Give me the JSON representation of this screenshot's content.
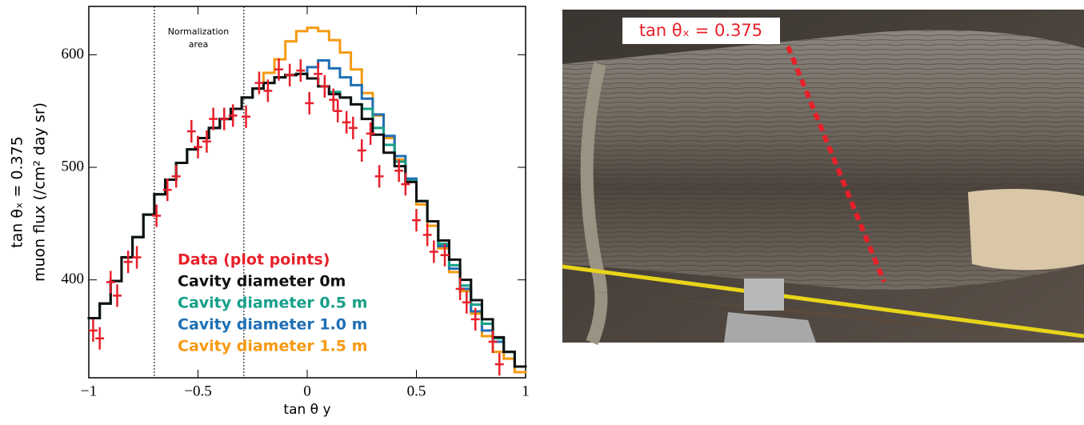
{
  "chart_data": {
    "type": "histogram",
    "ylabel_lines": [
      "tan θₓ = 0.375",
      "muon flux (/cm² day sr)"
    ],
    "xlabel": "tan θ y",
    "annotation_lines": [
      "Normalization",
      "area"
    ],
    "normalization_bounds": [
      -0.7,
      -0.29
    ],
    "xlim": [
      -1,
      1
    ],
    "ylim": [
      313,
      643
    ],
    "xticks": [
      {
        "value": -1,
        "label": "−1"
      },
      {
        "value": -0.5,
        "label": "−0.5"
      },
      0,
      0.5,
      1
    ],
    "yticks": [
      400,
      500,
      600
    ],
    "bins": [
      -1,
      -0.95,
      -0.9,
      -0.85,
      -0.8,
      -0.75,
      -0.7,
      -0.65,
      -0.6,
      -0.55,
      -0.5,
      -0.45,
      -0.4,
      -0.35,
      -0.3,
      -0.25,
      -0.2,
      -0.15,
      -0.1,
      -0.05,
      0,
      0.05,
      0.1,
      0.15,
      0.2,
      0.25,
      0.3,
      0.35,
      0.4,
      0.45,
      0.5,
      0.55,
      0.6,
      0.65,
      0.7,
      0.75,
      0.8,
      0.85,
      0.9,
      0.95,
      1
    ],
    "series": [
      {
        "name": "Cavity diameter 1.5 m",
        "color": "#f59a12",
        "values": [
          366,
          379,
          399,
          420,
          438,
          458,
          476,
          489,
          504,
          516,
          526,
          535,
          543,
          552,
          562,
          570,
          584,
          596,
          612,
          621,
          624,
          621,
          613,
          602,
          587,
          566,
          546,
          526,
          507,
          487,
          467,
          448,
          428,
          407,
          390,
          370,
          350,
          336,
          330,
          318
        ]
      },
      {
        "name": "Cavity diameter 1.0 m",
        "color": "#1f6fb4",
        "values": [
          366,
          379,
          399,
          420,
          438,
          458,
          476,
          489,
          504,
          516,
          526,
          535,
          543,
          552,
          562,
          570,
          575,
          580,
          582,
          583,
          589,
          595,
          588,
          580,
          573,
          561,
          547,
          528,
          510,
          490,
          470,
          452,
          430,
          410,
          392,
          372,
          355,
          345,
          336,
          323
        ]
      },
      {
        "name": "Cavity diameter 0.5 m",
        "color": "#16a08a",
        "values": [
          366,
          379,
          399,
          420,
          438,
          458,
          476,
          489,
          504,
          516,
          526,
          535,
          543,
          552,
          562,
          570,
          575,
          580,
          582,
          583,
          579,
          572,
          567,
          562,
          556,
          552,
          535,
          520,
          505,
          488,
          470,
          452,
          432,
          413,
          395,
          378,
          361,
          348,
          336,
          323
        ]
      },
      {
        "name": "Cavity diameter 0m",
        "color": "#111111",
        "values": [
          366,
          379,
          399,
          420,
          438,
          458,
          476,
          489,
          504,
          516,
          526,
          535,
          543,
          552,
          562,
          570,
          575,
          580,
          582,
          583,
          579,
          572,
          565,
          562,
          556,
          543,
          529,
          513,
          501,
          487,
          470,
          452,
          435,
          418,
          400,
          382,
          365,
          349,
          336,
          323
        ]
      }
    ],
    "points": {
      "name": "Data (plot points)",
      "color": "#e8202a",
      "xerr": 0.02,
      "yerr": 10,
      "x": [
        -0.98,
        -0.95,
        -0.9,
        -0.87,
        -0.82,
        -0.78,
        -0.69,
        -0.64,
        -0.6,
        -0.53,
        -0.5,
        -0.46,
        -0.43,
        -0.38,
        -0.34,
        -0.28,
        -0.22,
        -0.18,
        -0.13,
        -0.08,
        -0.03,
        0.01,
        0.05,
        0.08,
        0.12,
        0.14,
        0.18,
        0.21,
        0.25,
        0.29,
        0.33,
        0.42,
        0.45,
        0.5,
        0.55,
        0.58,
        0.63,
        0.7,
        0.73,
        0.77,
        0.85,
        0.88
      ],
      "values": [
        355,
        348,
        398,
        386,
        416,
        420,
        457,
        480,
        492,
        532,
        518,
        523,
        543,
        543,
        546,
        545,
        575,
        568,
        587,
        582,
        586,
        557,
        583,
        572,
        560,
        550,
        540,
        535,
        515,
        530,
        492,
        497,
        485,
        453,
        440,
        425,
        422,
        392,
        380,
        365,
        345,
        325
      ]
    }
  },
  "photo_label": "tan θₓ = 0.375"
}
